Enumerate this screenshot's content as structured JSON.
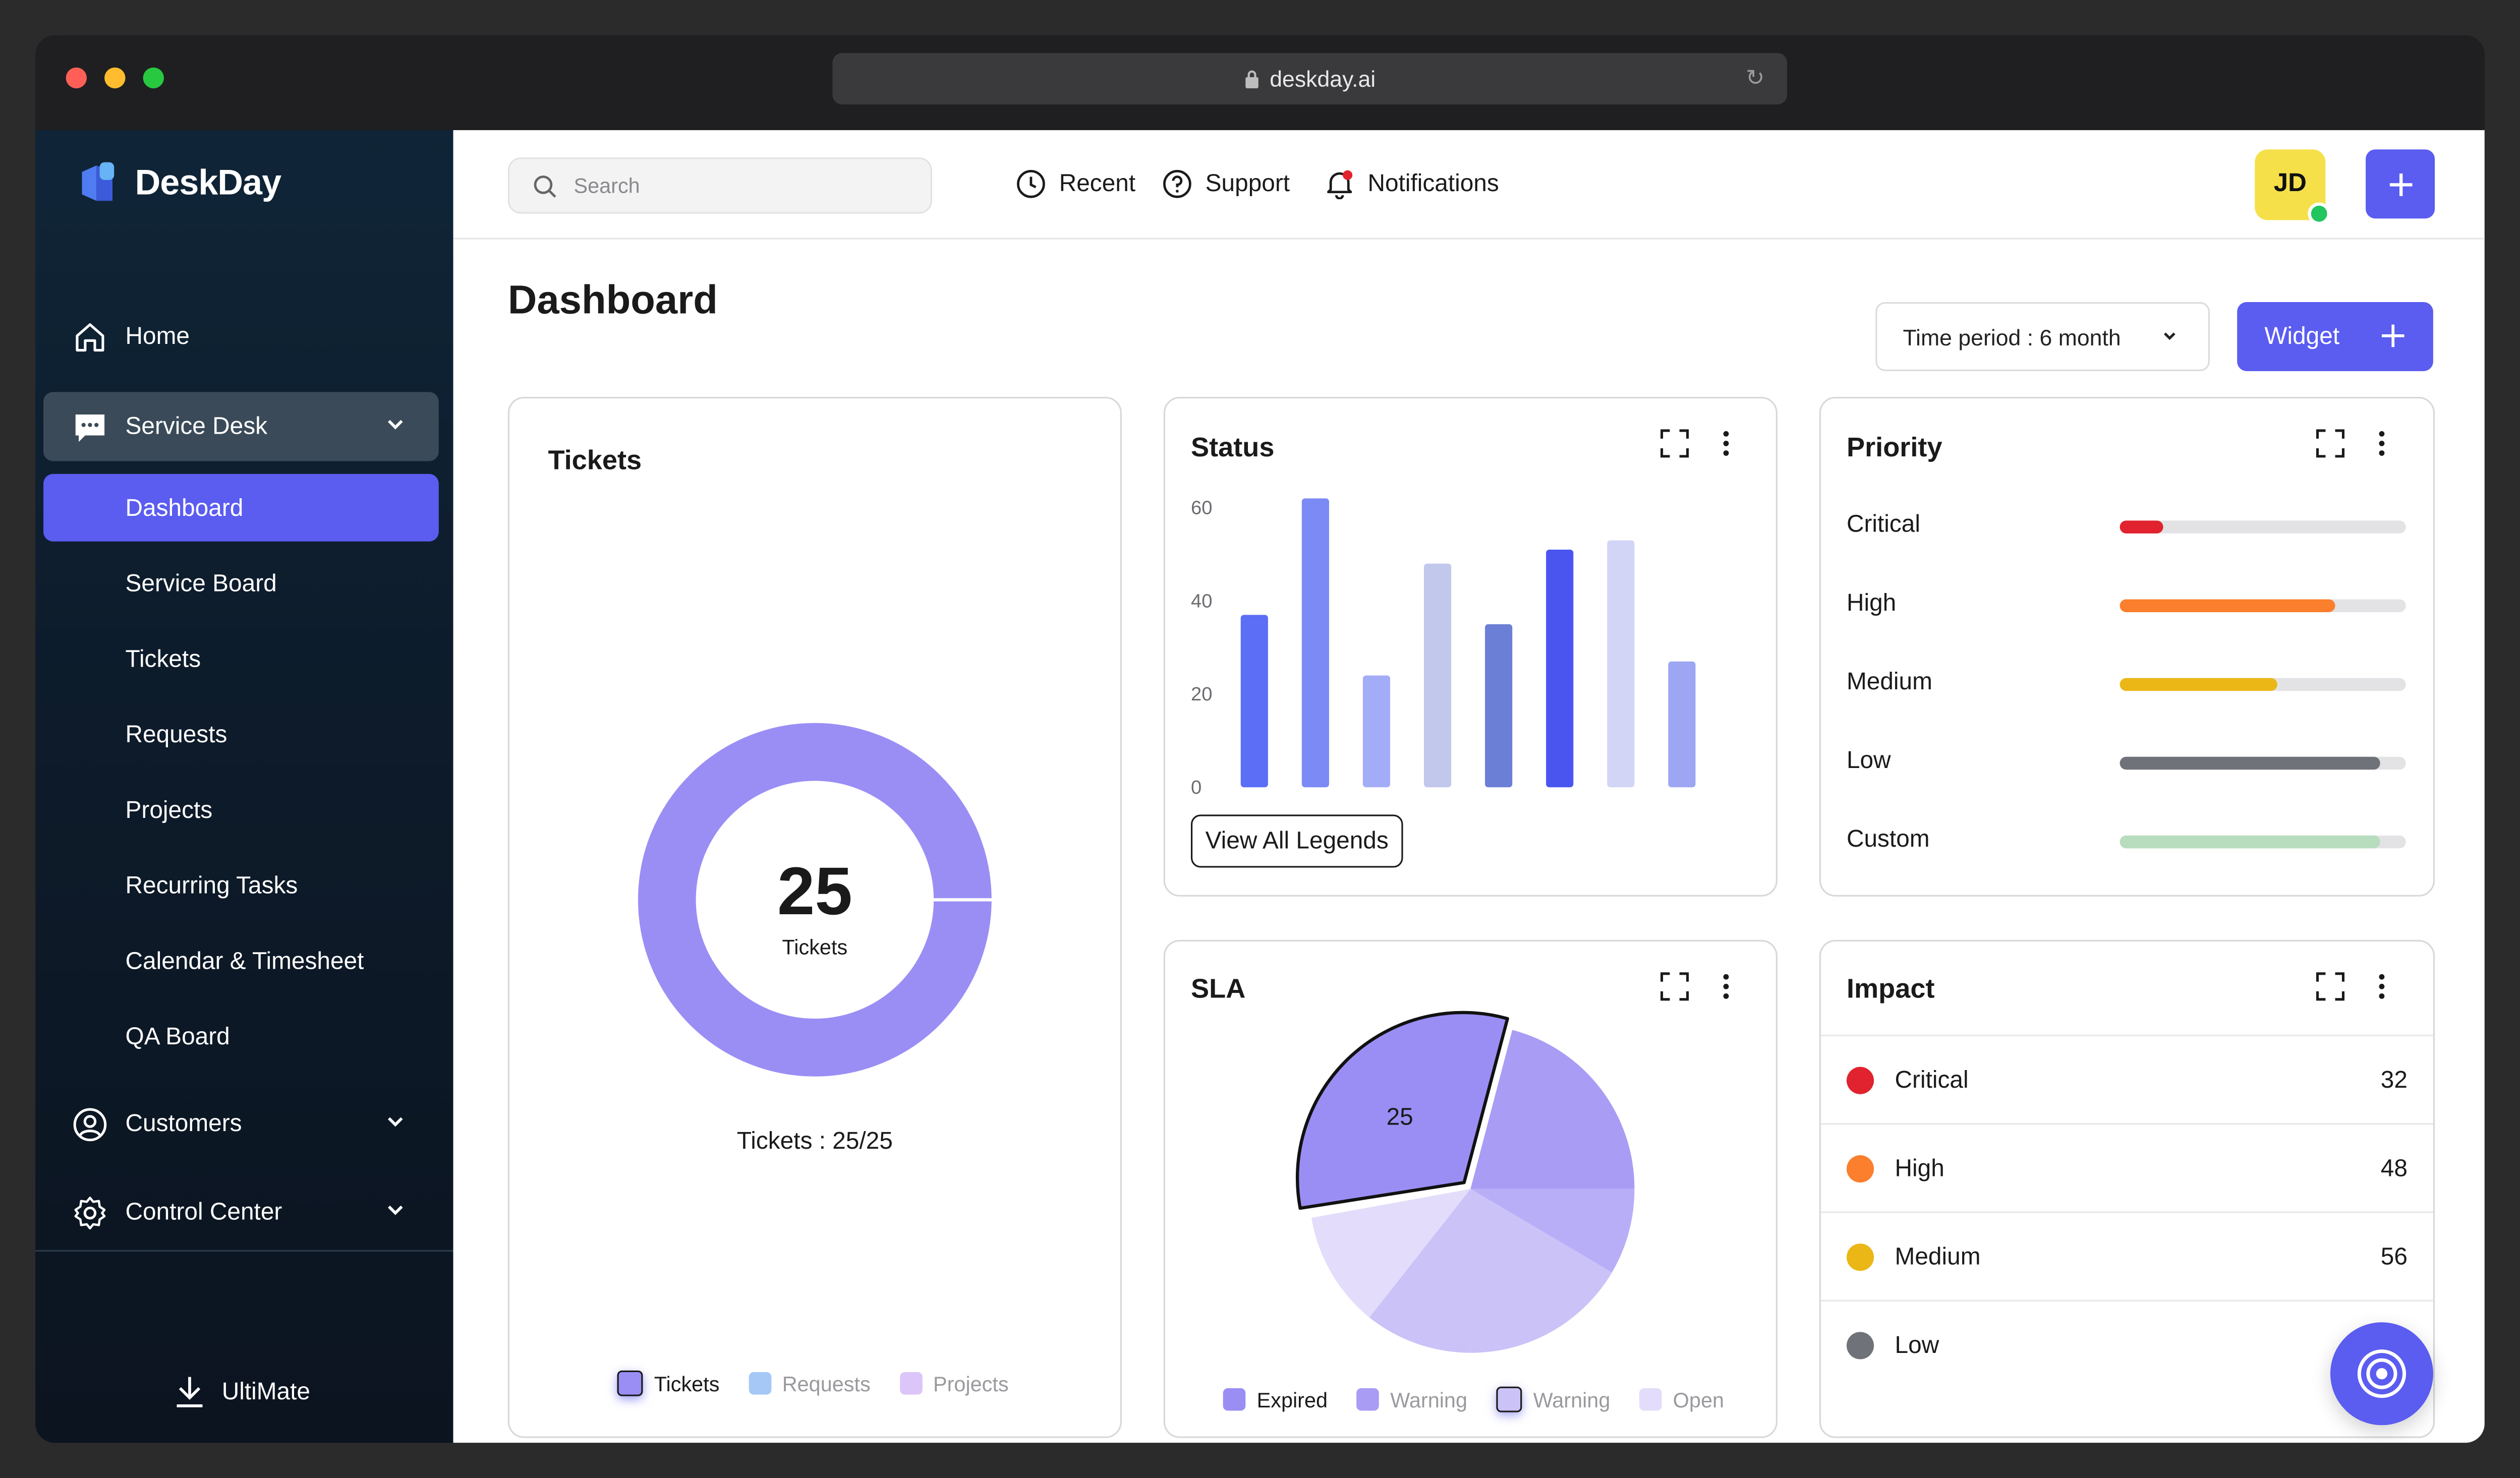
{
  "browser": {
    "url": "deskday.ai"
  },
  "brand": {
    "name": "DeskDay",
    "accent": "#5b5cf0"
  },
  "sidebar": {
    "home": "Home",
    "service_desk": "Service Desk",
    "sub_items": [
      "Dashboard",
      "Service Board",
      "Tickets",
      "Requests",
      "Projects",
      "Recurring Tasks",
      "Calendar & Timesheet",
      "QA Board"
    ],
    "customers": "Customers",
    "control_center": "Control Center",
    "footer": "UltiMate"
  },
  "topbar": {
    "search_placeholder": "Search",
    "recent": "Recent",
    "support": "Support",
    "notifications": "Notifications",
    "avatar_initials": "JD"
  },
  "header": {
    "title": "Dashboard",
    "time_period": "Time period : 6 month",
    "widget_button": "Widget"
  },
  "tickets_widget": {
    "title": "Tickets",
    "center_value": "25",
    "center_label": "Tickets",
    "summary": "Tickets : 25/25",
    "legend": [
      "Tickets",
      "Requests",
      "Projects"
    ],
    "legend_colors": [
      "#9a8ef5",
      "#a5c8f7",
      "#dcc5f8"
    ]
  },
  "status_widget": {
    "title": "Status",
    "button": "View All Legends"
  },
  "priority_widget": {
    "title": "Priority",
    "rows": [
      {
        "label": "Critical",
        "level": 0.15,
        "color": "#e0232e"
      },
      {
        "label": "High",
        "level": 0.75,
        "color": "#fb7f2c"
      },
      {
        "label": "Medium",
        "level": 0.55,
        "color": "#eab717"
      },
      {
        "label": "Low",
        "level": 0.91,
        "color": "#6f7278"
      },
      {
        "label": "Custom",
        "level": 0.91,
        "color": "#b8dcbe"
      }
    ]
  },
  "sla_widget": {
    "title": "SLA",
    "highlight_label": "25",
    "legend": [
      "Expired",
      "Warning",
      "Warning",
      "Open"
    ]
  },
  "impact_widget": {
    "title": "Impact",
    "rows": [
      {
        "label": "Critical",
        "value": "32",
        "color": "#e0232e"
      },
      {
        "label": "High",
        "value": "48",
        "color": "#fb7f2c"
      },
      {
        "label": "Medium",
        "value": "56",
        "color": "#eab717"
      },
      {
        "label": "Low",
        "value": "",
        "color": "#6f7278"
      }
    ]
  },
  "chart_data": [
    {
      "type": "bar",
      "title": "Status",
      "ylim": [
        0,
        60
      ],
      "yticks": [
        "0",
        "20",
        "40",
        "60"
      ],
      "values": [
        37,
        62,
        24,
        48,
        35,
        51,
        53,
        27
      ],
      "colors": [
        "#5b6ef5",
        "#7c8af5",
        "#a3adf7",
        "#c2c7ec",
        "#6b7fd6",
        "#4a55f0",
        "#d3d5f7",
        "#9ca6f3"
      ]
    },
    {
      "type": "pie",
      "title": "SLA",
      "values": [
        25,
        25,
        10,
        20,
        20
      ],
      "colors": [
        "#9a8ef5",
        "#a89cf5",
        "#b8aef8",
        "#cbc2f8",
        "#e3ddfb"
      ]
    },
    {
      "type": "pie",
      "title": "Tickets",
      "values": [
        25
      ],
      "colors": [
        "#9a8ef5"
      ]
    }
  ]
}
